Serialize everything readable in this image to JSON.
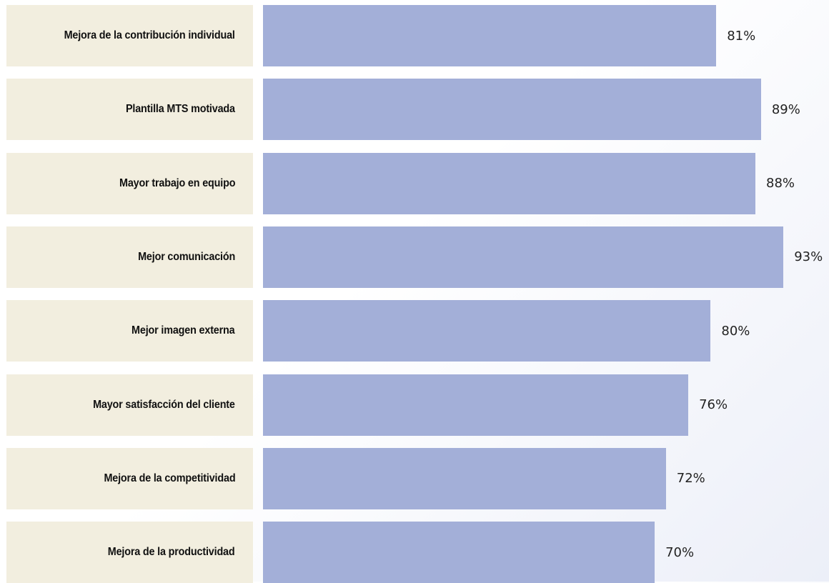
{
  "chart_data": {
    "type": "bar",
    "orientation": "horizontal",
    "categories": [
      "Mejora de la contribución individual",
      "Plantilla MTS motivada",
      "Mayor trabajo en equipo",
      "Mejor comunicación",
      "Mejor imagen externa",
      "Mayor satisfacción del cliente",
      "Mejora de la competitividad",
      "Mejora de la productividad"
    ],
    "values": [
      81,
      89,
      88,
      93,
      80,
      76,
      72,
      70
    ],
    "value_labels": [
      "81%",
      "89%",
      "88%",
      "93%",
      "80%",
      "76%",
      "72%",
      "70%"
    ],
    "unit": "%",
    "xlim": [
      0,
      100
    ],
    "grid": false,
    "legend": "none",
    "colors": {
      "bar": "#a3afd8",
      "label_background": "#f2eedf",
      "label_text": "#111111",
      "value_text": "#222222"
    }
  }
}
